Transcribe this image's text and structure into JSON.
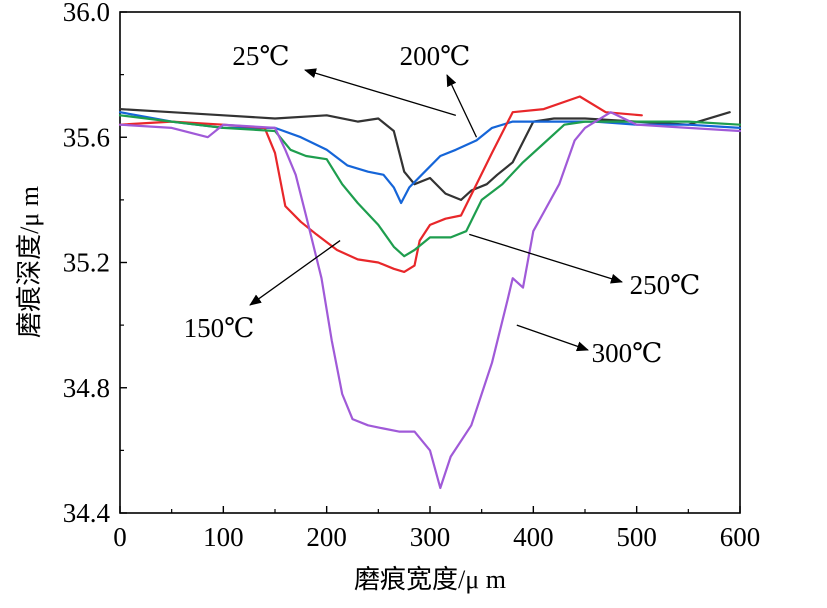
{
  "chart_data": {
    "type": "line",
    "title": "",
    "xlabel": "磨痕宽度/μ m",
    "ylabel": "磨痕深度/μ m",
    "xlim": [
      0,
      600
    ],
    "ylim": [
      34.4,
      36.0
    ],
    "xticks": [
      "0",
      "100",
      "200",
      "300",
      "400",
      "500",
      "600"
    ],
    "yticks": [
      "34.4",
      "34.8",
      "35.2",
      "35.6",
      "36.0"
    ],
    "grid": false,
    "legend": "none",
    "series": [
      {
        "name": "25℃",
        "color": "#333333",
        "x": [
          0,
          50,
          100,
          150,
          200,
          230,
          250,
          265,
          275,
          285,
          300,
          315,
          330,
          340,
          355,
          365,
          380,
          400,
          420,
          450,
          500,
          550,
          590
        ],
        "y": [
          35.69,
          35.68,
          35.67,
          35.66,
          35.67,
          35.65,
          35.66,
          35.62,
          35.49,
          35.45,
          35.47,
          35.42,
          35.4,
          35.43,
          35.45,
          35.48,
          35.52,
          35.65,
          35.66,
          35.66,
          35.65,
          35.64,
          35.68
        ]
      },
      {
        "name": "200℃",
        "color": "#1565d8",
        "x": [
          0,
          50,
          100,
          150,
          175,
          200,
          220,
          240,
          255,
          265,
          272,
          280,
          295,
          310,
          325,
          345,
          360,
          380,
          420,
          460,
          500,
          550,
          600
        ],
        "y": [
          35.68,
          35.65,
          35.63,
          35.63,
          35.6,
          35.56,
          35.51,
          35.49,
          35.48,
          35.44,
          35.39,
          35.44,
          35.49,
          35.54,
          35.56,
          35.59,
          35.63,
          35.65,
          35.65,
          35.65,
          35.64,
          35.64,
          35.63
        ]
      },
      {
        "name": "150℃",
        "color": "#e8272a",
        "x": [
          0,
          50,
          100,
          140,
          150,
          160,
          175,
          190,
          210,
          230,
          250,
          265,
          275,
          285,
          290,
          300,
          315,
          330,
          345,
          360,
          380,
          410,
          445,
          470,
          505
        ],
        "y": [
          35.64,
          35.65,
          35.64,
          35.63,
          35.55,
          35.38,
          35.33,
          35.29,
          35.24,
          35.21,
          35.2,
          35.18,
          35.17,
          35.19,
          35.27,
          35.32,
          35.34,
          35.35,
          35.45,
          35.55,
          35.68,
          35.69,
          35.73,
          35.68,
          35.67
        ]
      },
      {
        "name": "250℃",
        "color": "#1e9e4e",
        "x": [
          0,
          50,
          100,
          150,
          165,
          180,
          200,
          215,
          230,
          250,
          265,
          275,
          285,
          300,
          320,
          335,
          350,
          370,
          390,
          410,
          430,
          450,
          500,
          550,
          600
        ],
        "y": [
          35.67,
          35.65,
          35.63,
          35.62,
          35.56,
          35.54,
          35.53,
          35.45,
          35.39,
          35.32,
          35.25,
          35.22,
          35.24,
          35.28,
          35.28,
          35.3,
          35.4,
          35.45,
          35.52,
          35.58,
          35.64,
          35.65,
          35.65,
          35.65,
          35.64
        ]
      },
      {
        "name": "300℃",
        "color": "#a05ad8",
        "x": [
          0,
          50,
          85,
          100,
          150,
          160,
          170,
          180,
          195,
          205,
          215,
          225,
          240,
          255,
          270,
          285,
          300,
          310,
          320,
          340,
          360,
          375,
          380,
          390,
          400,
          410,
          425,
          440,
          450,
          475,
          500,
          550,
          600
        ],
        "y": [
          35.64,
          35.63,
          35.6,
          35.64,
          35.63,
          35.56,
          35.48,
          35.35,
          35.15,
          34.95,
          34.78,
          34.7,
          34.68,
          34.67,
          34.66,
          34.66,
          34.6,
          34.48,
          34.58,
          34.68,
          34.88,
          35.08,
          35.15,
          35.12,
          35.3,
          35.36,
          35.45,
          35.59,
          35.63,
          35.68,
          35.64,
          35.63,
          35.62
        ]
      }
    ],
    "annotations": [
      {
        "text": "25℃",
        "series": "25℃",
        "target_x": 325,
        "target_y": 35.67
      },
      {
        "text": "200℃",
        "series": "200℃",
        "target_x": 345,
        "target_y": 35.6
      },
      {
        "text": "150℃",
        "series": "150℃",
        "target_x": 213,
        "target_y": 35.27
      },
      {
        "text": "250℃",
        "series": "250℃",
        "target_x": 338,
        "target_y": 35.29
      },
      {
        "text": "300℃",
        "series": "300℃",
        "target_x": 384,
        "target_y": 35.0
      }
    ]
  }
}
